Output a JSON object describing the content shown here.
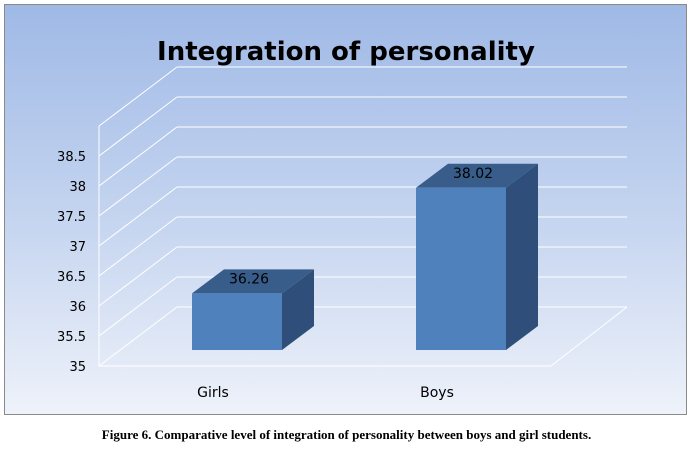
{
  "chart_data": {
    "type": "bar",
    "title": "Integration of personality",
    "categories": [
      "Girls",
      "Boys"
    ],
    "values": [
      36.26,
      38.02
    ],
    "data_labels": [
      "36.26",
      "38.02"
    ],
    "ylim": [
      35,
      38.5
    ],
    "y_ticks": [
      "35",
      "35.5",
      "36",
      "36.5",
      "37",
      "37.5",
      "38",
      "38.5"
    ],
    "grid": true,
    "bar_color": "#4f81bd",
    "style": "3d-column"
  },
  "caption": "Figure 6. Comparative level of integration of personality between boys and girl students."
}
